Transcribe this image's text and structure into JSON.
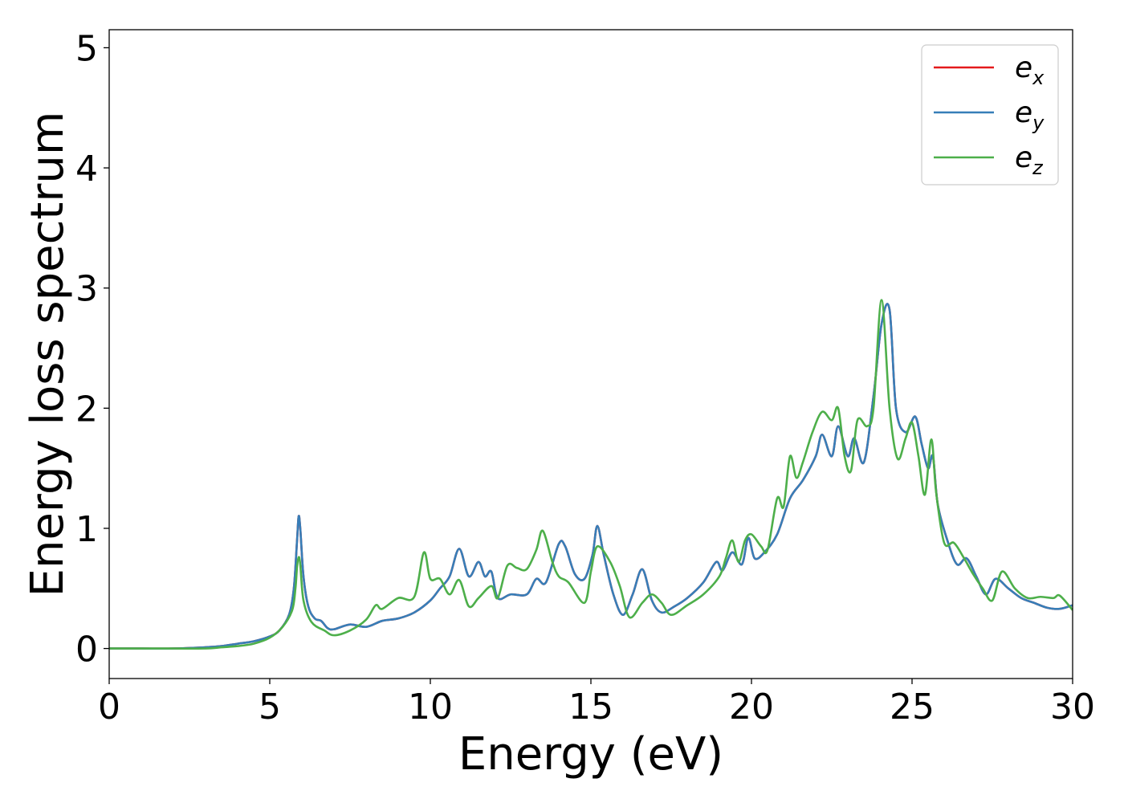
{
  "chart_data": {
    "type": "line",
    "xlabel": "Energy (eV)",
    "ylabel": "Energy loss spectrum",
    "xlim": [
      0,
      30
    ],
    "ylim": [
      -0.25,
      5.15
    ],
    "xticks": [
      0,
      5,
      10,
      15,
      20,
      25,
      30
    ],
    "yticks": [
      0,
      1,
      2,
      3,
      4,
      5
    ],
    "grid": false,
    "legend_position": "top-right",
    "series": [
      {
        "name": "e_x",
        "label_base": "e",
        "label_sub": "x",
        "color": "#e41a1c",
        "x": [
          0,
          1,
          2,
          3,
          3.5,
          4,
          4.5,
          5,
          5.3,
          5.6,
          5.75,
          5.85,
          5.9,
          5.95,
          6.05,
          6.2,
          6.4,
          6.6,
          6.8,
          7,
          7.5,
          8,
          8.5,
          9,
          9.5,
          10,
          10.3,
          10.6,
          10.9,
          11.2,
          11.5,
          11.7,
          11.9,
          12.1,
          12.5,
          13,
          13.3,
          13.6,
          14,
          14.2,
          14.5,
          14.8,
          15.05,
          15.2,
          15.4,
          15.7,
          16,
          16.3,
          16.6,
          16.9,
          17.2,
          17.6,
          18,
          18.5,
          18.9,
          19.1,
          19.4,
          19.7,
          19.9,
          20.1,
          20.4,
          20.8,
          21.2,
          21.6,
          22,
          22.2,
          22.5,
          22.7,
          23,
          23.2,
          23.5,
          23.8,
          24.05,
          24.3,
          24.5,
          24.8,
          25.1,
          25.3,
          25.5,
          25.65,
          25.8,
          26.1,
          26.4,
          26.7,
          27,
          27.3,
          27.6,
          28,
          28.4,
          28.8,
          29.2,
          29.6,
          30
        ],
        "y": [
          0,
          0,
          0,
          0.01,
          0.02,
          0.04,
          0.06,
          0.1,
          0.15,
          0.28,
          0.5,
          0.9,
          1.1,
          1.0,
          0.6,
          0.35,
          0.25,
          0.23,
          0.17,
          0.16,
          0.2,
          0.18,
          0.23,
          0.25,
          0.3,
          0.4,
          0.5,
          0.6,
          0.83,
          0.6,
          0.72,
          0.6,
          0.64,
          0.42,
          0.45,
          0.45,
          0.58,
          0.55,
          0.87,
          0.85,
          0.62,
          0.58,
          0.78,
          1.02,
          0.78,
          0.45,
          0.28,
          0.45,
          0.66,
          0.4,
          0.3,
          0.35,
          0.42,
          0.55,
          0.72,
          0.65,
          0.8,
          0.7,
          0.92,
          0.75,
          0.8,
          0.95,
          1.25,
          1.4,
          1.6,
          1.78,
          1.6,
          1.85,
          1.6,
          1.75,
          1.55,
          2.1,
          2.7,
          2.82,
          2.0,
          1.8,
          1.93,
          1.7,
          1.5,
          1.6,
          1.2,
          0.9,
          0.7,
          0.75,
          0.6,
          0.45,
          0.58,
          0.5,
          0.42,
          0.38,
          0.34,
          0.33,
          0.36
        ]
      },
      {
        "name": "e_y",
        "label_base": "e",
        "label_sub": "y",
        "color": "#377eb8",
        "x": [
          0,
          1,
          2,
          3,
          3.5,
          4,
          4.5,
          5,
          5.3,
          5.6,
          5.75,
          5.85,
          5.9,
          5.95,
          6.05,
          6.2,
          6.4,
          6.6,
          6.8,
          7,
          7.5,
          8,
          8.5,
          9,
          9.5,
          10,
          10.3,
          10.6,
          10.9,
          11.2,
          11.5,
          11.7,
          11.9,
          12.1,
          12.5,
          13,
          13.3,
          13.6,
          14,
          14.2,
          14.5,
          14.8,
          15.05,
          15.2,
          15.4,
          15.7,
          16,
          16.3,
          16.6,
          16.9,
          17.2,
          17.6,
          18,
          18.5,
          18.9,
          19.1,
          19.4,
          19.7,
          19.9,
          20.1,
          20.4,
          20.8,
          21.2,
          21.6,
          22,
          22.2,
          22.5,
          22.7,
          23,
          23.2,
          23.5,
          23.8,
          24.05,
          24.3,
          24.5,
          24.8,
          25.1,
          25.3,
          25.5,
          25.65,
          25.8,
          26.1,
          26.4,
          26.7,
          27,
          27.3,
          27.6,
          28,
          28.4,
          28.8,
          29.2,
          29.6,
          30
        ],
        "y": [
          0,
          0,
          0,
          0.01,
          0.02,
          0.04,
          0.06,
          0.1,
          0.15,
          0.28,
          0.5,
          0.9,
          1.1,
          1.0,
          0.6,
          0.35,
          0.25,
          0.23,
          0.17,
          0.16,
          0.2,
          0.18,
          0.23,
          0.25,
          0.3,
          0.4,
          0.5,
          0.6,
          0.83,
          0.6,
          0.72,
          0.6,
          0.64,
          0.42,
          0.45,
          0.45,
          0.58,
          0.55,
          0.87,
          0.85,
          0.62,
          0.58,
          0.78,
          1.02,
          0.78,
          0.45,
          0.28,
          0.45,
          0.66,
          0.4,
          0.3,
          0.35,
          0.42,
          0.55,
          0.72,
          0.65,
          0.8,
          0.7,
          0.92,
          0.75,
          0.8,
          0.95,
          1.25,
          1.4,
          1.6,
          1.78,
          1.6,
          1.85,
          1.6,
          1.75,
          1.55,
          2.1,
          2.7,
          2.82,
          2.0,
          1.8,
          1.93,
          1.7,
          1.5,
          1.6,
          1.2,
          0.9,
          0.7,
          0.75,
          0.6,
          0.45,
          0.58,
          0.5,
          0.42,
          0.38,
          0.34,
          0.33,
          0.36
        ]
      },
      {
        "name": "e_z",
        "label_base": "e",
        "label_sub": "z",
        "color": "#4daf4a",
        "x": [
          0,
          1,
          2,
          3,
          3.5,
          4,
          4.5,
          5,
          5.4,
          5.7,
          5.8,
          5.85,
          5.9,
          5.95,
          6.05,
          6.3,
          6.7,
          7,
          7.5,
          8,
          8.3,
          8.5,
          9,
          9.5,
          9.8,
          10,
          10.3,
          10.6,
          10.9,
          11.2,
          11.5,
          11.9,
          12.1,
          12.4,
          12.7,
          13,
          13.3,
          13.5,
          13.8,
          14,
          14.3,
          14.8,
          15,
          15.2,
          15.6,
          15.9,
          16.2,
          16.6,
          16.9,
          17.2,
          17.5,
          18,
          18.5,
          19,
          19.2,
          19.4,
          19.6,
          19.8,
          20,
          20.3,
          20.5,
          20.8,
          21,
          21.2,
          21.4,
          21.6,
          21.9,
          22.2,
          22.5,
          22.7,
          22.9,
          23.1,
          23.3,
          23.6,
          23.8,
          24.05,
          24.3,
          24.55,
          24.8,
          25,
          25.2,
          25.4,
          25.6,
          25.75,
          26,
          26.3,
          26.6,
          26.9,
          27.2,
          27.5,
          27.8,
          28.2,
          28.6,
          29,
          29.4,
          29.6,
          30
        ],
        "y": [
          0,
          0,
          0,
          0,
          0.01,
          0.02,
          0.04,
          0.09,
          0.18,
          0.32,
          0.5,
          0.68,
          0.76,
          0.7,
          0.4,
          0.22,
          0.15,
          0.11,
          0.15,
          0.24,
          0.36,
          0.33,
          0.42,
          0.43,
          0.8,
          0.58,
          0.58,
          0.45,
          0.57,
          0.35,
          0.42,
          0.52,
          0.42,
          0.69,
          0.67,
          0.66,
          0.82,
          0.98,
          0.72,
          0.6,
          0.55,
          0.38,
          0.64,
          0.85,
          0.72,
          0.52,
          0.26,
          0.38,
          0.45,
          0.38,
          0.28,
          0.36,
          0.45,
          0.6,
          0.75,
          0.9,
          0.72,
          0.9,
          0.95,
          0.85,
          0.82,
          1.25,
          1.18,
          1.6,
          1.42,
          1.55,
          1.8,
          1.97,
          1.9,
          2.0,
          1.6,
          1.48,
          1.9,
          1.85,
          2.0,
          2.9,
          2.0,
          1.58,
          1.75,
          1.88,
          1.6,
          1.28,
          1.74,
          1.3,
          0.88,
          0.88,
          0.76,
          0.62,
          0.5,
          0.4,
          0.64,
          0.5,
          0.42,
          0.43,
          0.42,
          0.44,
          0.32
        ]
      }
    ]
  }
}
